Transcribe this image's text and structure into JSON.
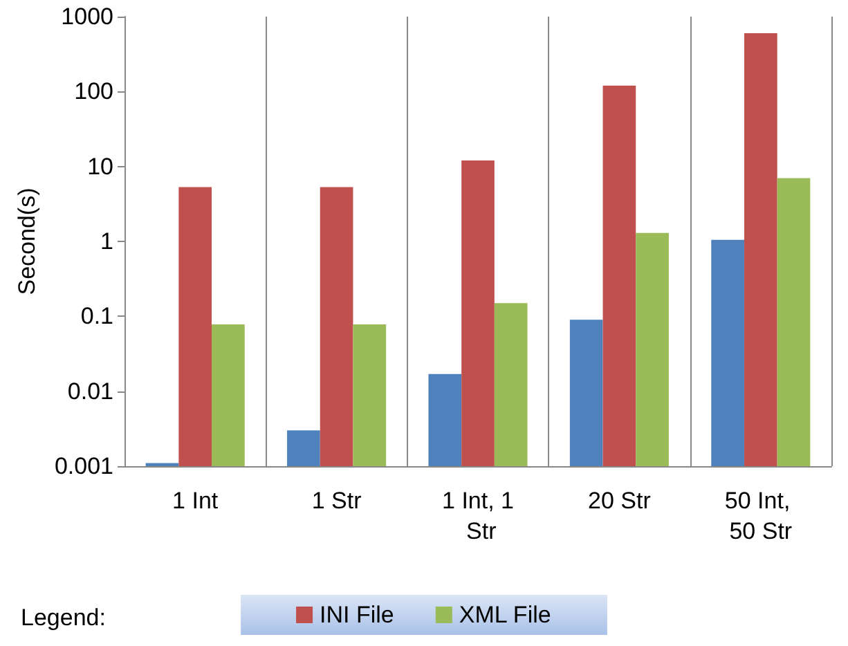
{
  "chart_data": {
    "type": "bar",
    "ylabel": "Second(s)",
    "legend_title": "Legend:",
    "categories": [
      "1 Int",
      "1 Str",
      "1 Int, 1 Str",
      "20 Str",
      "50 Int, 50 Str"
    ],
    "series": [
      {
        "color": "#4f81bd",
        "values": [
          0.0011,
          0.003,
          0.017,
          0.09,
          1.05
        ]
      },
      {
        "name": "INI File",
        "color": "#c0504d",
        "values": [
          5.3,
          5.3,
          12,
          120,
          600
        ]
      },
      {
        "name": "XML File",
        "color": "#9bbb59",
        "values": [
          0.078,
          0.078,
          0.15,
          1.3,
          7
        ]
      }
    ],
    "log": "y",
    "ylim": [
      0.001,
      1000
    ],
    "yticks": [
      0.001,
      0.01,
      0.1,
      1,
      10,
      100,
      1000
    ],
    "grid": "x",
    "legend": "bottom"
  }
}
